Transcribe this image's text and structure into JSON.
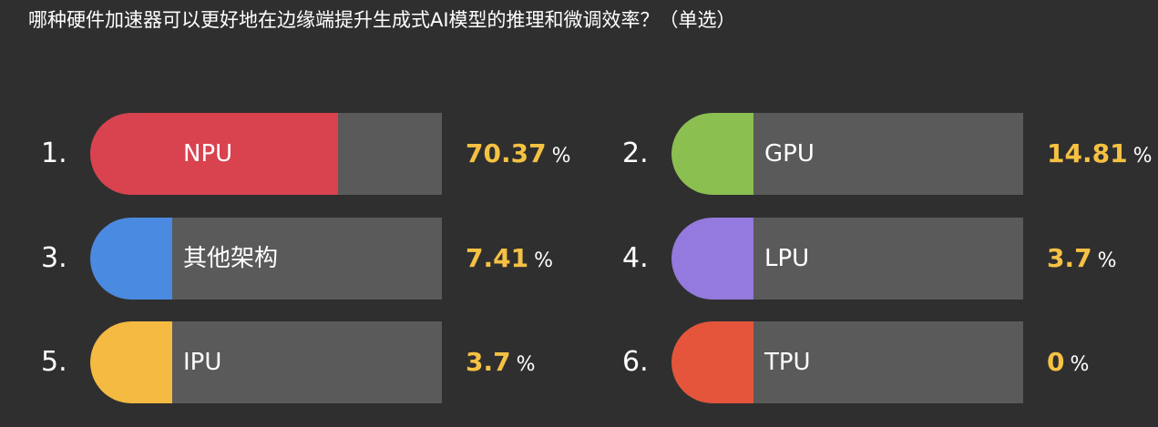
{
  "question": "哪种硬件加速器可以更好地在边缘端提升生成式AI模型的推理和微调效率？（单选）",
  "options": [
    {
      "number": "1.",
      "label": "NPU",
      "percent": "70.37",
      "percent_sign": "%",
      "share": 0.7037,
      "color": "#d9424f"
    },
    {
      "number": "2.",
      "label": "GPU",
      "percent": "14.81",
      "percent_sign": "%",
      "share": 0.1481,
      "color": "#8bbf4f"
    },
    {
      "number": "3.",
      "label": "其他架构",
      "percent": "7.41",
      "percent_sign": "%",
      "share": 0.0741,
      "color": "#4a8ae0"
    },
    {
      "number": "4.",
      "label": "LPU",
      "percent": "3.7",
      "percent_sign": "%",
      "share": 0.037,
      "color": "#9479de"
    },
    {
      "number": "5.",
      "label": "IPU",
      "percent": "3.7",
      "percent_sign": "%",
      "share": 0.037,
      "color": "#f4ba41"
    },
    {
      "number": "6.",
      "label": "TPU",
      "percent": "0",
      "percent_sign": "%",
      "share": 0.0,
      "color": "#e4553b"
    }
  ],
  "colors": {
    "background": "#2f2f2f",
    "track": "#5a5a5a",
    "percent_value": "#f5c143",
    "text": "#ffffff"
  }
}
